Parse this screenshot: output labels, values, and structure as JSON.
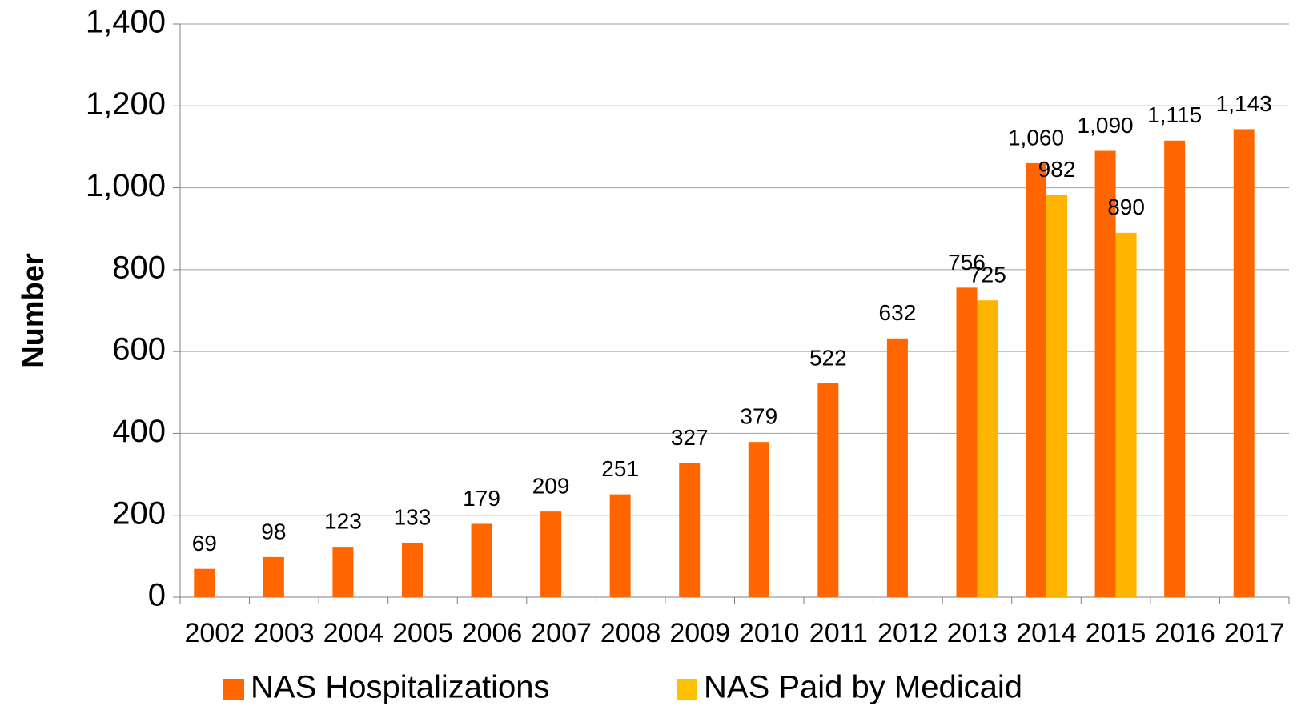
{
  "chart_data": {
    "type": "bar",
    "y_label": "Number",
    "categories": [
      "2002",
      "2003",
      "2004",
      "2005",
      "2006",
      "2007",
      "2008",
      "2009",
      "2010",
      "2011",
      "2012",
      "2013",
      "2014",
      "2015",
      "2016",
      "2017"
    ],
    "series": [
      {
        "name": "NAS Hospitalizations",
        "color": "#ff6600",
        "values": [
          69,
          98,
          123,
          133,
          179,
          209,
          251,
          327,
          379,
          522,
          632,
          756,
          1060,
          1090,
          1115,
          1143
        ],
        "value_labels": [
          "69",
          "98",
          "123",
          "133",
          "179",
          "209",
          "251",
          "327",
          "379",
          "522",
          "632",
          "756",
          "1,060",
          "1,090",
          "1,115",
          "1,143"
        ]
      },
      {
        "name": "NAS Paid by Medicaid",
        "color": "#ffb400",
        "values": [
          null,
          null,
          null,
          null,
          null,
          null,
          null,
          null,
          null,
          null,
          null,
          725,
          982,
          890,
          null,
          null
        ]
      }
    ],
    "ylim": [
      0,
      1400
    ],
    "yticks": [
      0,
      200,
      400,
      600,
      800,
      {
        "value": 1000,
        "label": "1,000"
      },
      {
        "value": 1200,
        "label": "1,200"
      },
      {
        "value": 1400,
        "label": "1,400"
      }
    ],
    "grid": true,
    "legend": "bottom"
  }
}
